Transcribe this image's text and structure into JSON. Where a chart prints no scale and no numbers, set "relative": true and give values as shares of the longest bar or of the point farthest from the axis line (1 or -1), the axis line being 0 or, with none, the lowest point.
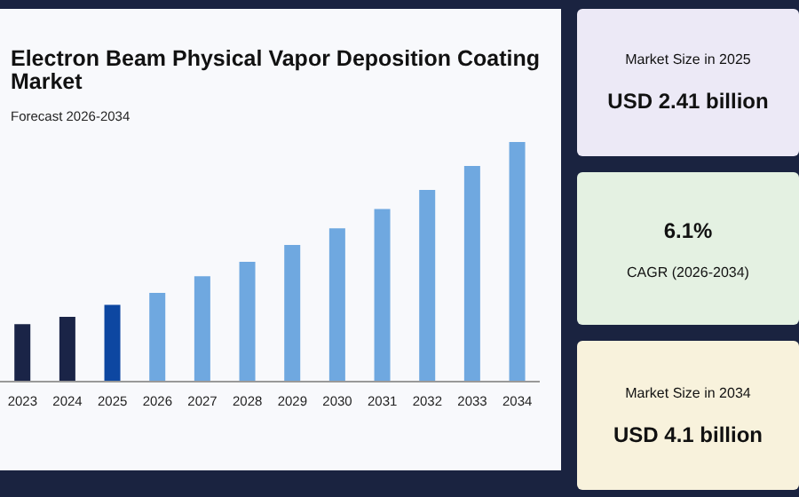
{
  "chart_data": [
    {
      "type": "bar",
      "title": "Electron Beam Physical Vapor Deposition Coating Market",
      "subtitle": "Forecast 2026-2034",
      "categories": [
        "2023",
        "2024",
        "2025",
        "2026",
        "2027",
        "2028",
        "2029",
        "2030",
        "2031",
        "2032",
        "2033",
        "2034"
      ],
      "values": [
        0.24,
        0.27,
        0.32,
        0.37,
        0.44,
        0.5,
        0.57,
        0.64,
        0.72,
        0.8,
        0.9,
        1
      ],
      "colors": [
        "#1a2447",
        "#1a2447",
        "#0d47a1",
        "#6fa8e0",
        "#6fa8e0",
        "#6fa8e0",
        "#6fa8e0",
        "#6fa8e0",
        "#6fa8e0",
        "#6fa8e0",
        "#6fa8e0",
        "#6fa8e0"
      ],
      "relative": true
    },
    {
      "type": "other",
      "annotations": [
        "Market Size in 2025",
        "USD 2.41 billion"
      ]
    },
    {
      "type": "other",
      "annotations": [
        "6.1%",
        "CAGR (2026-2034)"
      ]
    },
    {
      "type": "other",
      "annotations": [
        "Market Size in 2034",
        "USD 4.1 billion"
      ]
    }
  ]
}
